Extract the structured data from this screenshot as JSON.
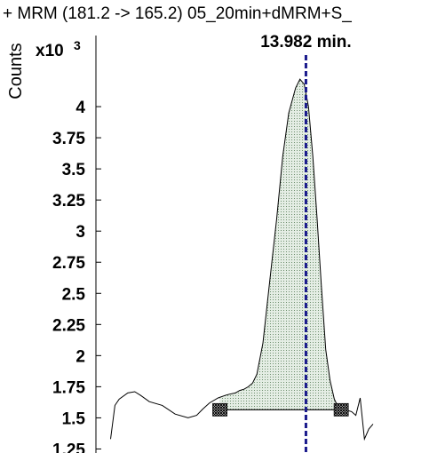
{
  "chart_data": {
    "type": "line",
    "title": "+ MRM (181.2 -> 165.2) 05_20min+dMRM+S_",
    "ylabel": "Counts",
    "y_multiplier_label": "x10",
    "y_multiplier_exponent": "3",
    "yticks": [
      "1.25",
      "1.5",
      "1.75",
      "2",
      "2.25",
      "2.5",
      "2.75",
      "3",
      "3.25",
      "3.5",
      "3.75",
      "4"
    ],
    "ylim": [
      1.0,
      4.3
    ],
    "xlim": [
      13.74,
      14.06
    ],
    "retention_time_label": "13.982 min.",
    "retention_time": 13.982,
    "series": [
      {
        "x": [
          13.755,
          13.76,
          13.765,
          13.775,
          13.783,
          13.79,
          13.8,
          13.815,
          13.83,
          13.845,
          13.855,
          13.862,
          13.87,
          13.88,
          13.888,
          13.893,
          13.9,
          13.905,
          13.91,
          13.915,
          13.92,
          13.925,
          13.932,
          13.94,
          13.948,
          13.955,
          13.962,
          13.97,
          13.975,
          13.98,
          13.985,
          13.99,
          13.995,
          14.0,
          14.005,
          14.01,
          14.015,
          14.02,
          14.025,
          14.03,
          14.035,
          14.04,
          14.045,
          14.05,
          14.055,
          14.06
        ],
        "y": [
          1.33,
          1.6,
          1.65,
          1.7,
          1.71,
          1.68,
          1.63,
          1.6,
          1.53,
          1.5,
          1.52,
          1.57,
          1.62,
          1.66,
          1.68,
          1.69,
          1.7,
          1.72,
          1.73,
          1.75,
          1.78,
          1.85,
          2.1,
          2.6,
          3.1,
          3.6,
          3.95,
          4.15,
          4.22,
          4.18,
          4.0,
          3.6,
          3.1,
          2.55,
          2.05,
          1.8,
          1.65,
          1.58,
          1.57,
          1.56,
          1.55,
          1.52,
          1.66,
          1.33,
          1.41,
          1.45
        ]
      }
    ],
    "integration": {
      "start_x": 13.882,
      "end_x": 14.023,
      "baseline_y": 1.565
    },
    "colors": {
      "trace": "#000000",
      "fill": "#e4ede4",
      "fill_dots": "#6f8f6f",
      "rt_line": "#1a1a8c",
      "baseline": "#000000"
    }
  }
}
